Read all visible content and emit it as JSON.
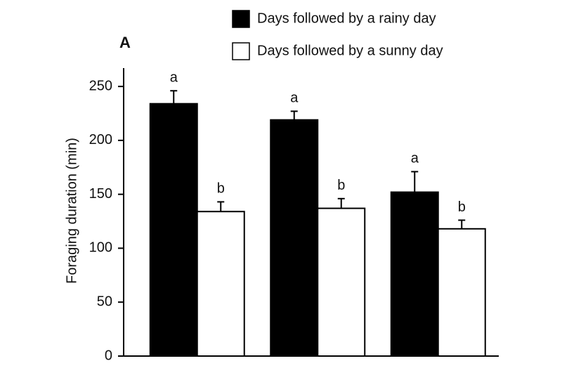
{
  "chart_data": {
    "type": "bar",
    "panel_label": "A",
    "y_label": "Foraging duration (min)",
    "categories": [
      null,
      null,
      null
    ],
    "series": [
      {
        "name": "Days followed by a rainy day",
        "color": "#000000",
        "values": [
          234,
          219,
          152
        ],
        "errors": [
          12,
          8,
          19
        ],
        "letters": [
          "a",
          "a",
          "a"
        ]
      },
      {
        "name": "Days followed by a sunny day",
        "color": "#ffffff",
        "values": [
          134,
          137,
          118
        ],
        "errors": [
          9,
          9,
          8
        ],
        "letters": [
          "b",
          "b",
          "b"
        ]
      }
    ],
    "ylim": [
      0,
      267
    ],
    "yticks": [
      0,
      50,
      100,
      150,
      200,
      250
    ],
    "grid": false
  }
}
